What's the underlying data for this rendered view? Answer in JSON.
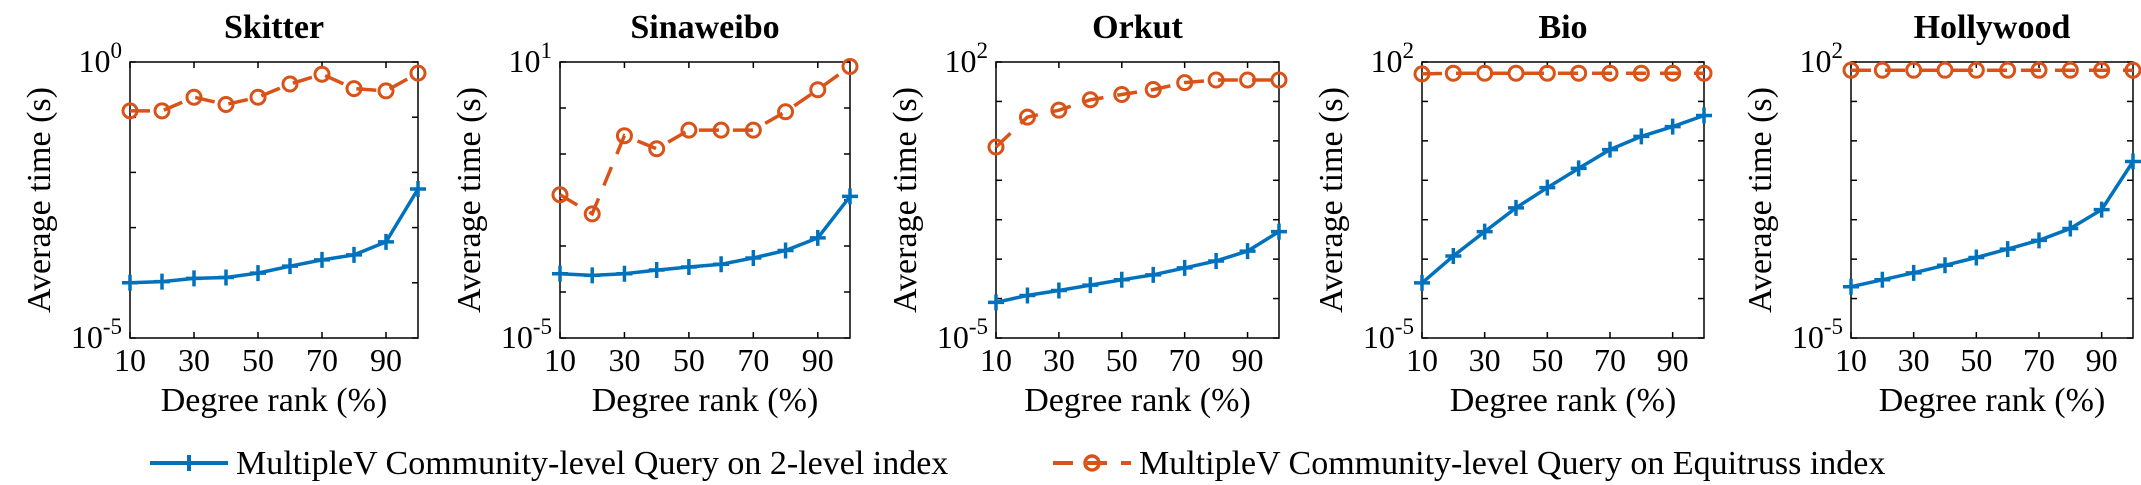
{
  "legend": {
    "series": [
      {
        "name": "MultipleV Community-level Query on 2-level index",
        "color": "#0072BD",
        "marker": "plus",
        "line": "solid"
      },
      {
        "name": "MultipleV Community-level Query on Equitruss index",
        "color": "#D95319",
        "marker": "circle",
        "line": "dashed"
      }
    ]
  },
  "chart_data": [
    {
      "type": "line",
      "title": "Skitter",
      "xlabel": "Degree rank (%)",
      "ylabel": "Average time (s)",
      "x": [
        10,
        20,
        30,
        40,
        50,
        60,
        70,
        80,
        90,
        100
      ],
      "xticks": [
        "10",
        "30",
        "50",
        "70",
        "90"
      ],
      "y_scale": "log",
      "ylim_exp": [
        -5,
        0
      ],
      "yticks": [
        {
          "base": "10",
          "exp": "-5"
        },
        {
          "base": "10",
          "exp": "0"
        }
      ],
      "series": [
        {
          "values": [
            0.0001,
            0.000105,
            0.00012,
            0.000125,
            0.00015,
            0.0002,
            0.00026,
            0.00032,
            0.00055,
            0.005
          ]
        },
        {
          "values": [
            0.13,
            0.13,
            0.23,
            0.17,
            0.23,
            0.4,
            0.6,
            0.33,
            0.3,
            0.63
          ]
        }
      ]
    },
    {
      "type": "line",
      "title": "Sinaweibo",
      "xlabel": "Degree rank (%)",
      "ylabel": "Average time (s)",
      "x": [
        10,
        20,
        30,
        40,
        50,
        60,
        70,
        80,
        90,
        100
      ],
      "xticks": [
        "10",
        "30",
        "50",
        "70",
        "90"
      ],
      "y_scale": "log",
      "ylim_exp": [
        -5,
        1
      ],
      "yticks": [
        {
          "base": "10",
          "exp": "-5"
        },
        {
          "base": "10",
          "exp": "1"
        }
      ],
      "series": [
        {
          "values": [
            0.00025,
            0.00023,
            0.00025,
            0.0003,
            0.00035,
            0.0004,
            0.00055,
            0.0008,
            0.0015,
            0.012
          ]
        },
        {
          "values": [
            0.013,
            0.005,
            0.25,
            0.13,
            0.33,
            0.33,
            0.33,
            0.83,
            2.5,
            8
          ]
        }
      ]
    },
    {
      "type": "line",
      "title": "Orkut",
      "xlabel": "Degree rank (%)",
      "ylabel": "Average time (s)",
      "x": [
        10,
        20,
        30,
        40,
        50,
        60,
        70,
        80,
        90,
        100
      ],
      "xticks": [
        "10",
        "30",
        "50",
        "70",
        "90"
      ],
      "y_scale": "log",
      "ylim_exp": [
        -5,
        2
      ],
      "yticks": [
        {
          "base": "10",
          "exp": "-5"
        },
        {
          "base": "10",
          "exp": "2"
        }
      ],
      "series": [
        {
          "values": [
            8e-05,
            0.00012,
            0.00016,
            0.00022,
            0.0003,
            0.0004,
            0.0006,
            0.0009,
            0.0016,
            0.005
          ]
        },
        {
          "values": [
            0.7,
            4,
            6,
            11,
            15,
            20,
            30,
            35,
            35,
            35
          ]
        }
      ]
    },
    {
      "type": "line",
      "title": "Bio",
      "xlabel": "Degree rank (%)",
      "ylabel": "Average time (s)",
      "x": [
        10,
        20,
        30,
        40,
        50,
        60,
        70,
        80,
        90,
        100
      ],
      "xticks": [
        "10",
        "30",
        "50",
        "70",
        "90"
      ],
      "y_scale": "log",
      "ylim_exp": [
        -5,
        2
      ],
      "yticks": [
        {
          "base": "10",
          "exp": "-5"
        },
        {
          "base": "10",
          "exp": "2"
        }
      ],
      "series": [
        {
          "values": [
            0.00025,
            0.0012,
            0.005,
            0.02,
            0.065,
            0.2,
            0.6,
            1.3,
            2.3,
            4.4
          ]
        },
        {
          "values": [
            50,
            52,
            52,
            52,
            52,
            52,
            52,
            52,
            52,
            52
          ]
        }
      ]
    },
    {
      "type": "line",
      "title": "Hollywood",
      "xlabel": "Degree rank (%)",
      "ylabel": "Average time (s)",
      "x": [
        10,
        20,
        30,
        40,
        50,
        60,
        70,
        80,
        90,
        100
      ],
      "xticks": [
        "10",
        "30",
        "50",
        "70",
        "90"
      ],
      "y_scale": "log",
      "ylim_exp": [
        -5,
        2
      ],
      "yticks": [
        {
          "base": "10",
          "exp": "-5"
        },
        {
          "base": "10",
          "exp": "2"
        }
      ],
      "series": [
        {
          "values": [
            0.0002,
            0.0003,
            0.00045,
            0.0007,
            0.0011,
            0.0018,
            0.003,
            0.006,
            0.018,
            0.3
          ]
        },
        {
          "values": [
            62,
            62,
            62,
            62,
            62,
            62,
            62,
            62,
            62,
            62
          ]
        }
      ]
    }
  ]
}
